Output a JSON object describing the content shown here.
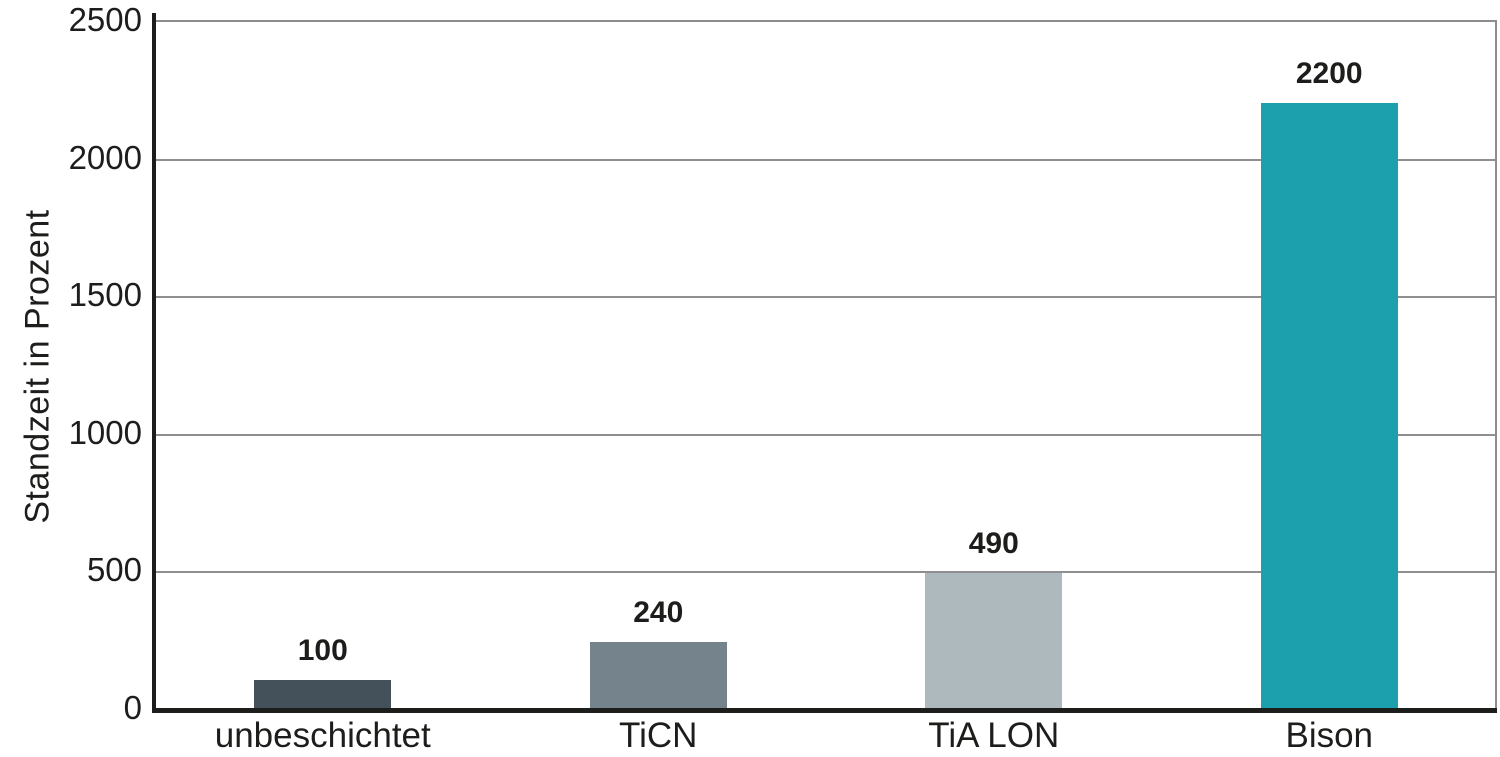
{
  "chart_data": {
    "type": "bar",
    "title": "",
    "xlabel": "",
    "ylabel": "Standzeit in Prozent",
    "categories": [
      "unbeschichtet",
      "TiCN",
      "TiA LON",
      "Bison"
    ],
    "values": [
      100,
      240,
      490,
      2200
    ],
    "value_labels": [
      "100",
      "240",
      "490",
      "2200"
    ],
    "bar_colors": [
      "#44515a",
      "#75838c",
      "#aeb9bd",
      "#1da0ad"
    ],
    "ylim": [
      0,
      2500
    ],
    "yticks": [
      0,
      500,
      1000,
      1500,
      2000,
      2500
    ],
    "ytick_labels": [
      "0",
      "500",
      "1000",
      "1500",
      "2000",
      "2500"
    ],
    "grid": true,
    "legend_position": "none"
  },
  "colors": {
    "axis": "#1d1d1b",
    "gridline": "#8f8f8f",
    "frame": "#8c8c8c",
    "text": "#1d1d1b",
    "background": "#ffffff"
  }
}
